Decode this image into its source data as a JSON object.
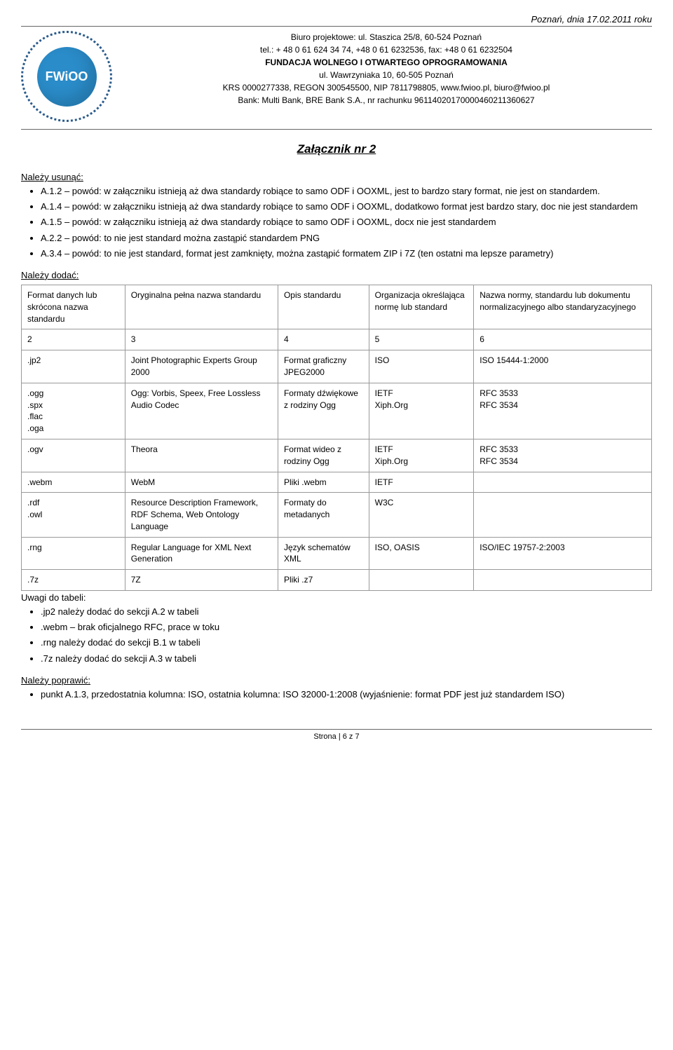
{
  "date": "Poznań, dnia 17.02.2011 roku",
  "header": {
    "line1": "Biuro projektowe: ul. Staszica 25/8, 60-524 Poznań",
    "line2": "tel.: + 48 0 61 624 34 74, +48 0 61 6232536, fax: +48 0 61 6232504",
    "line3": "FUNDACJA WOLNEGO I OTWARTEGO OPROGRAMOWANIA",
    "line4": "ul. Wawrzyniaka 10, 60-505 Poznań",
    "line5": "KRS 0000277338, REGON 300545500, NIP 7811798805, www.fwioo.pl, biuro@fwioo.pl",
    "line6": "Bank: Multi Bank, BRE Bank S.A., nr rachunku 96114020170000460211360627"
  },
  "logo_label": "FWiOO",
  "title": "Załącznik nr 2",
  "remove_label": "Należy usunąć:",
  "remove_items": [
    "A.1.2 – powód: w załączniku istnieją aż dwa standardy robiące to samo ODF i OOXML, jest to bardzo stary format, nie jest on standardem.",
    "A.1.4 –  powód: w załączniku istnieją aż dwa standardy robiące to samo ODF i OOXML, dodatkowo format jest bardzo stary, doc nie jest standardem",
    "A.1.5 –  powód: w załączniku istnieją aż dwa standardy robiące to samo ODF i OOXML, docx nie jest standardem",
    "A.2.2 – powód: to nie jest standard można zastąpić standardem PNG",
    "A.3.4 – powód: to nie jest standard, format jest zamknięty, można zastąpić formatem ZIP i 7Z (ten ostatni ma lepsze parametry)"
  ],
  "add_label": "Należy dodać:",
  "table": {
    "headers": [
      "Format danych lub skrócona  nazwa standardu",
      " Oryginalna pełna nazwa standardu",
      " Opis standardu",
      "Organizacja określająca normę lub standard",
      "Nazwa normy, standardu lub dokumentu normalizacyjnego albo standaryzacyjnego"
    ],
    "nums": [
      "2",
      "3",
      "4",
      "5",
      "6"
    ],
    "rows": [
      [
        ".jp2",
        "Joint Photographic Experts Group 2000",
        "Format graficzny JPEG2000",
        "ISO",
        " ISO 15444-1:2000"
      ],
      [
        ".ogg\n.spx\n.flac\n.oga",
        " Ogg: Vorbis, Speex, Free Lossless\nAudio Codec",
        "Formaty dźwiękowe z rodziny Ogg",
        "IETF\nXiph.Org",
        "RFC 3533\nRFC 3534"
      ],
      [
        " .ogv",
        "Theora",
        "Format wideo z rodziny Ogg",
        "IETF\nXiph.Org",
        "RFC 3533\nRFC 3534"
      ],
      [
        ".webm",
        "WebM",
        "Pliki .webm",
        "IETF",
        ""
      ],
      [
        ".rdf\n.owl",
        "Resource Description Framework, RDF Schema, Web Ontology Language",
        "Formaty do metadanych",
        "W3C",
        ""
      ],
      [
        ".rng",
        "Regular Language for XML Next Generation",
        "Język schematów XML",
        "ISO, OASIS",
        "ISO/IEC 19757-2:2003"
      ],
      [
        ".7z",
        "7Z",
        "Pliki .z7",
        "",
        ""
      ]
    ]
  },
  "notes_label": "Uwagi do tabeli:",
  "notes": [
    ".jp2 należy dodać do sekcji A.2 w tabeli",
    ".webm – brak oficjalnego RFC, prace w toku",
    ".rng należy dodać do sekcji B.1 w tabeli",
    ".7z należy dodać do sekcji A.3 w tabeli"
  ],
  "fix_label": "Należy poprawić:",
  "fix_items": [
    "punkt A.1.3,  przedostatnia kolumna: ISO, ostatnia kolumna: ISO 32000-1:2008 (wyjaśnienie: format PDF jest już standardem ISO)"
  ],
  "footer": "Strona | 6 z 7"
}
